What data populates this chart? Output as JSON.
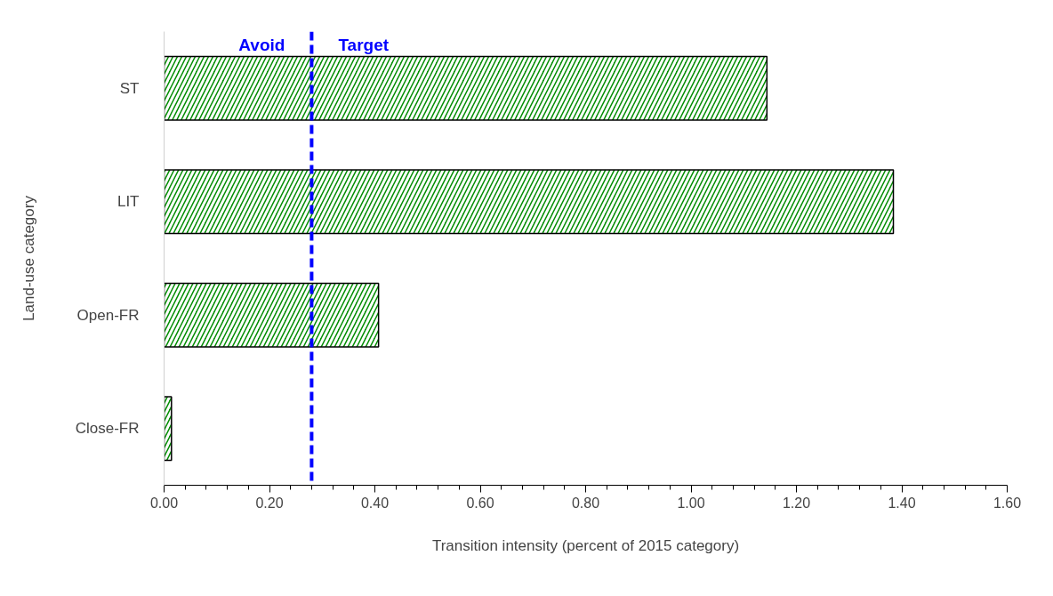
{
  "chart_data": {
    "type": "bar",
    "orientation": "horizontal",
    "xlabel": "Transition intensity (percent of 2015 category)",
    "ylabel": "Land-use category",
    "categories": [
      "ST",
      "LIT",
      "Open-FR",
      "Close-FR"
    ],
    "values": [
      1.144,
      1.384,
      0.407,
      0.014
    ],
    "color": "#008c00",
    "xlim": [
      0,
      1.6
    ],
    "xticks": [
      {
        "value": 0,
        "label": "0.00"
      },
      {
        "value": 0.04,
        "label": null
      },
      {
        "value": 0.08,
        "label": null
      },
      {
        "value": 0.12,
        "label": null
      },
      {
        "value": 0.16,
        "label": null
      },
      {
        "value": 0.2,
        "label": "0.20"
      },
      {
        "value": 0.24,
        "label": null
      },
      {
        "value": 0.28,
        "label": null
      },
      {
        "value": 0.32,
        "label": null
      },
      {
        "value": 0.36,
        "label": null
      },
      {
        "value": 0.4,
        "label": "0.40"
      },
      {
        "value": 0.44,
        "label": null
      },
      {
        "value": 0.48,
        "label": null
      },
      {
        "value": 0.52,
        "label": null
      },
      {
        "value": 0.56,
        "label": null
      },
      {
        "value": 0.6,
        "label": "0.60"
      },
      {
        "value": 0.64,
        "label": null
      },
      {
        "value": 0.68,
        "label": null
      },
      {
        "value": 0.72,
        "label": null
      },
      {
        "value": 0.76,
        "label": null
      },
      {
        "value": 0.8,
        "label": "0.80"
      },
      {
        "value": 0.84,
        "label": null
      },
      {
        "value": 0.88,
        "label": null
      },
      {
        "value": 0.92,
        "label": null
      },
      {
        "value": 0.96,
        "label": null
      },
      {
        "value": 1.0,
        "label": "1.00"
      },
      {
        "value": 1.04,
        "label": null
      },
      {
        "value": 1.08,
        "label": null
      },
      {
        "value": 1.12,
        "label": null
      },
      {
        "value": 1.16,
        "label": null
      },
      {
        "value": 1.2,
        "label": "1.20"
      },
      {
        "value": 1.24,
        "label": null
      },
      {
        "value": 1.28,
        "label": null
      },
      {
        "value": 1.32,
        "label": null
      },
      {
        "value": 1.36,
        "label": null
      },
      {
        "value": 1.4,
        "label": "1.40"
      },
      {
        "value": 1.44,
        "label": null
      },
      {
        "value": 1.48,
        "label": null
      },
      {
        "value": 1.52,
        "label": null
      },
      {
        "value": 1.56,
        "label": null
      },
      {
        "value": 1.6,
        "label": "1.60"
      }
    ],
    "ref_lines": [
      {
        "axis": "x",
        "value": 0.28,
        "color": "#0000ff",
        "line_style": "dashed"
      }
    ],
    "annotations": [
      "Avoid",
      "Target"
    ],
    "grid": false
  }
}
